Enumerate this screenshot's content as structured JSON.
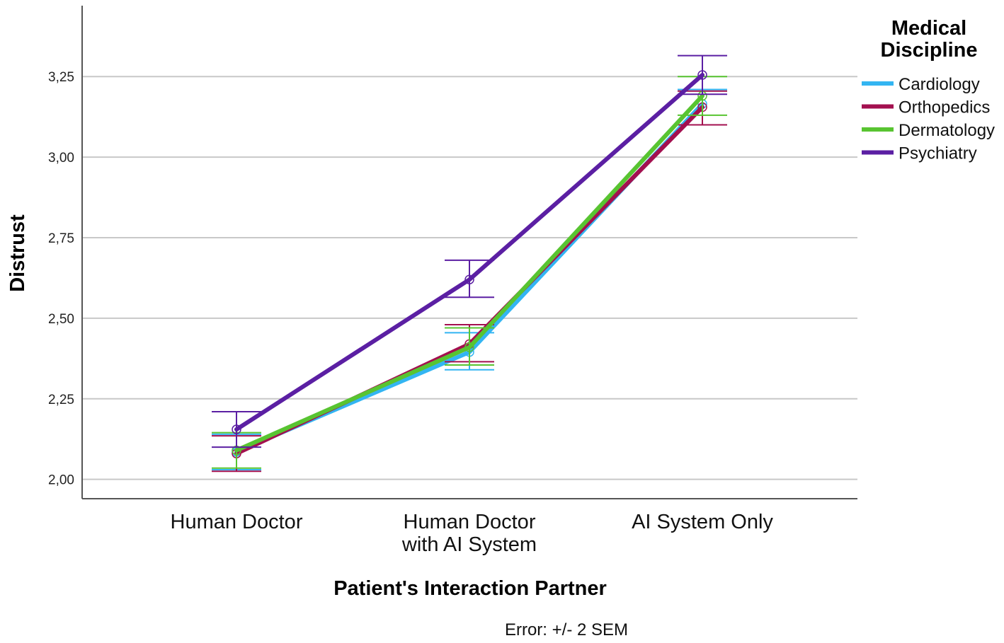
{
  "chart_data": {
    "type": "line",
    "xlabel": "Patient's Interaction Partner",
    "ylabel": "Distrust",
    "categories": [
      [
        "Human Doctor"
      ],
      [
        "Human Doctor",
        "with AI System"
      ],
      [
        "AI System Only"
      ]
    ],
    "ylim": [
      1.94,
      3.47
    ],
    "yticks": [
      2.0,
      2.25,
      2.5,
      2.75,
      3.0,
      3.25
    ],
    "ytick_labels": [
      "2,00",
      "2,25",
      "2,50",
      "2,75",
      "3,00",
      "3,25"
    ],
    "grid": "horizontal",
    "legend": {
      "title_lines": [
        "Medical",
        "Discipline"
      ],
      "placement": "right"
    },
    "note": "Error: +/- 2 SEM",
    "series": [
      {
        "name": "Cardiology",
        "color": "#33b5f2",
        "values": [
          2.085,
          2.395,
          3.165
        ],
        "err_low": [
          2.03,
          2.34,
          3.1
        ],
        "err_high": [
          2.14,
          2.455,
          3.21
        ]
      },
      {
        "name": "Orthopedics",
        "color": "#a3104f",
        "values": [
          2.08,
          2.42,
          3.155
        ],
        "err_low": [
          2.025,
          2.365,
          3.1
        ],
        "err_high": [
          2.135,
          2.48,
          3.205
        ]
      },
      {
        "name": "Dermatology",
        "color": "#58c431",
        "values": [
          2.09,
          2.41,
          3.19
        ],
        "err_low": [
          2.035,
          2.355,
          3.13
        ],
        "err_high": [
          2.145,
          2.47,
          3.25
        ]
      },
      {
        "name": "Psychiatry",
        "color": "#5b1fa3",
        "values": [
          2.155,
          2.62,
          3.255
        ],
        "err_low": [
          2.1,
          2.565,
          3.195
        ],
        "err_high": [
          2.21,
          2.68,
          3.315
        ]
      }
    ]
  }
}
